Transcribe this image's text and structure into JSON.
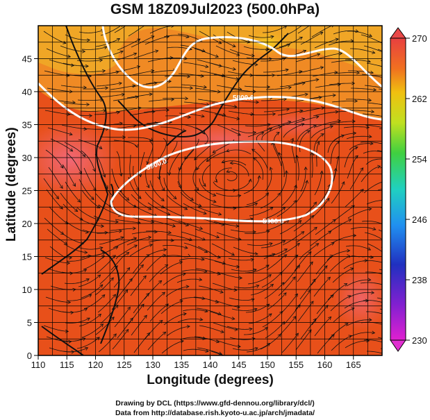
{
  "title": "GSM 18Z09Jul2023 (500.0hPa)",
  "x_axis": {
    "label": "Longitude (degrees)",
    "ticks": [
      "110",
      "115",
      "120",
      "125",
      "130",
      "135",
      "140",
      "145",
      "150",
      "155",
      "160",
      "165"
    ]
  },
  "y_axis": {
    "label": "Latitude  (degrees)",
    "ticks": [
      "0",
      "5",
      "10",
      "15",
      "20",
      "25",
      "30",
      "35",
      "40",
      "45"
    ]
  },
  "colorbar": {
    "ticks": [
      "270",
      "262",
      "254",
      "246",
      "238",
      "230"
    ],
    "range": [
      230,
      270
    ]
  },
  "contours": {
    "label_5800": "5800.0",
    "label_5900": "5900.0"
  },
  "credits": {
    "line1": "Drawing by DCL (https://www.gfd-dennou.org/library/dcl/)",
    "line2": "Data from http://database.rish.kyoto-u.ac.jp/arch/jmadata/"
  },
  "colors": {
    "warm": "#e8501a",
    "hot": "#f06070",
    "mid": "#f09020",
    "cool": "#f0c020"
  }
}
